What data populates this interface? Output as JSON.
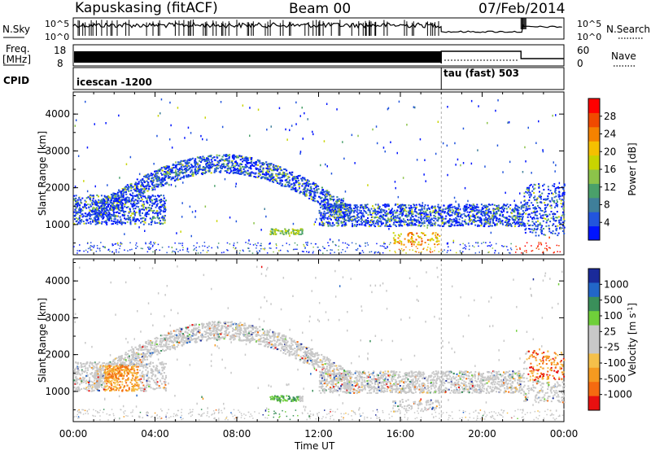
{
  "header": {
    "station": "Kapuskasing (fitACF)",
    "beam": "Beam 00",
    "date": "07/Feb/2014"
  },
  "strip_labels": {
    "nsky": "N.Sky",
    "freq_line1": "Freq.",
    "freq_line2": "[MHz]",
    "cpid": "CPID",
    "nsearch": "N.Search",
    "nave": "Nave"
  },
  "strip_ticks": {
    "n_left_top": "10^5",
    "n_left_bottom": "10^0",
    "n_right_top": "10^5",
    "n_right_bottom": "10^0",
    "freq_top": "18",
    "freq_bottom": "8",
    "nave_top": "60",
    "nave_bottom": "0"
  },
  "cpid_entries": [
    {
      "label": "icescan -1200",
      "start_hour": 0
    },
    {
      "label": "tau (fast) 503",
      "start_hour": 18
    }
  ],
  "chart_data": [
    {
      "type": "heatmap",
      "panel": "power",
      "ylabel": "Slant Range [km]",
      "xlabel": "",
      "xlim": [
        0,
        24
      ],
      "ylim": [
        180,
        4600
      ],
      "y_ticks": [
        "1000",
        "2000",
        "3000",
        "4000"
      ],
      "colorbar": {
        "label": "Power [dB]",
        "ticks": [
          "4",
          "8",
          "12",
          "16",
          "20",
          "24",
          "28"
        ],
        "colors": [
          "#0014ff",
          "#2255dd",
          "#3f7f9a",
          "#4aa06a",
          "#8cc34a",
          "#c8d400",
          "#f5c000",
          "#f58200",
          "#f04a00",
          "#ff0000"
        ]
      }
    },
    {
      "type": "heatmap",
      "panel": "velocity",
      "ylabel": "Slant Range [km]",
      "xlabel": "Time UT",
      "xlim": [
        0,
        24
      ],
      "ylim": [
        180,
        4600
      ],
      "x_ticks": [
        "00:00",
        "04:00",
        "08:00",
        "12:00",
        "16:00",
        "20:00",
        "00:00"
      ],
      "y_ticks": [
        "1000",
        "2000",
        "3000",
        "4000"
      ],
      "colorbar": {
        "label": "Velocity [m s^-1]",
        "ticks": [
          "1000",
          "500",
          "100",
          "25",
          "-25",
          "-100",
          "-500",
          "-1000"
        ],
        "colors": [
          "#1a2a9a",
          "#2266c8",
          "#3a8f5a",
          "#6fcf3a",
          "#c8c8c8",
          "#c8c8c8",
          "#f5c04a",
          "#f59a20",
          "#f56a10",
          "#e81010"
        ]
      }
    }
  ]
}
